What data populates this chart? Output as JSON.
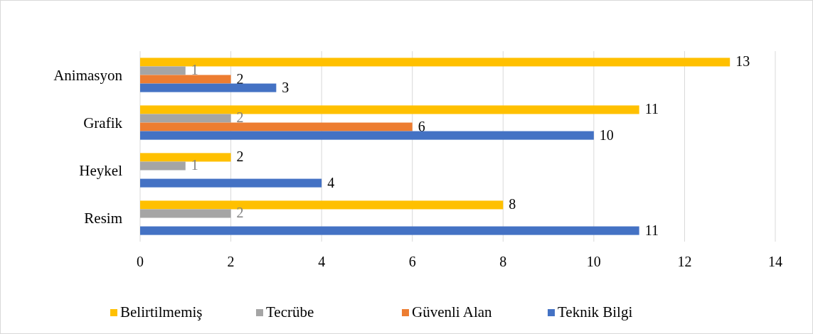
{
  "chart_data": {
    "type": "bar",
    "orientation": "horizontal",
    "categories": [
      "Animasyon",
      "Grafik",
      "Heykel",
      "Resim"
    ],
    "series": [
      {
        "name": "Belirtilmemiş",
        "color": "#ffc000",
        "values": [
          13,
          11,
          2,
          8
        ]
      },
      {
        "name": "Tecrübe",
        "color": "#a5a5a5",
        "values": [
          1,
          2,
          1,
          2
        ]
      },
      {
        "name": "Güvenli Alan",
        "color": "#ed7d31",
        "values": [
          2,
          6,
          null,
          null
        ]
      },
      {
        "name": "Teknik Bilgi",
        "color": "#4472c4",
        "values": [
          3,
          10,
          4,
          11
        ]
      }
    ],
    "xlim": [
      0,
      14
    ],
    "xticks": [
      0,
      2,
      4,
      6,
      8,
      10,
      12,
      14
    ],
    "grid": "x",
    "legend": "bottom",
    "data_labels": true
  }
}
